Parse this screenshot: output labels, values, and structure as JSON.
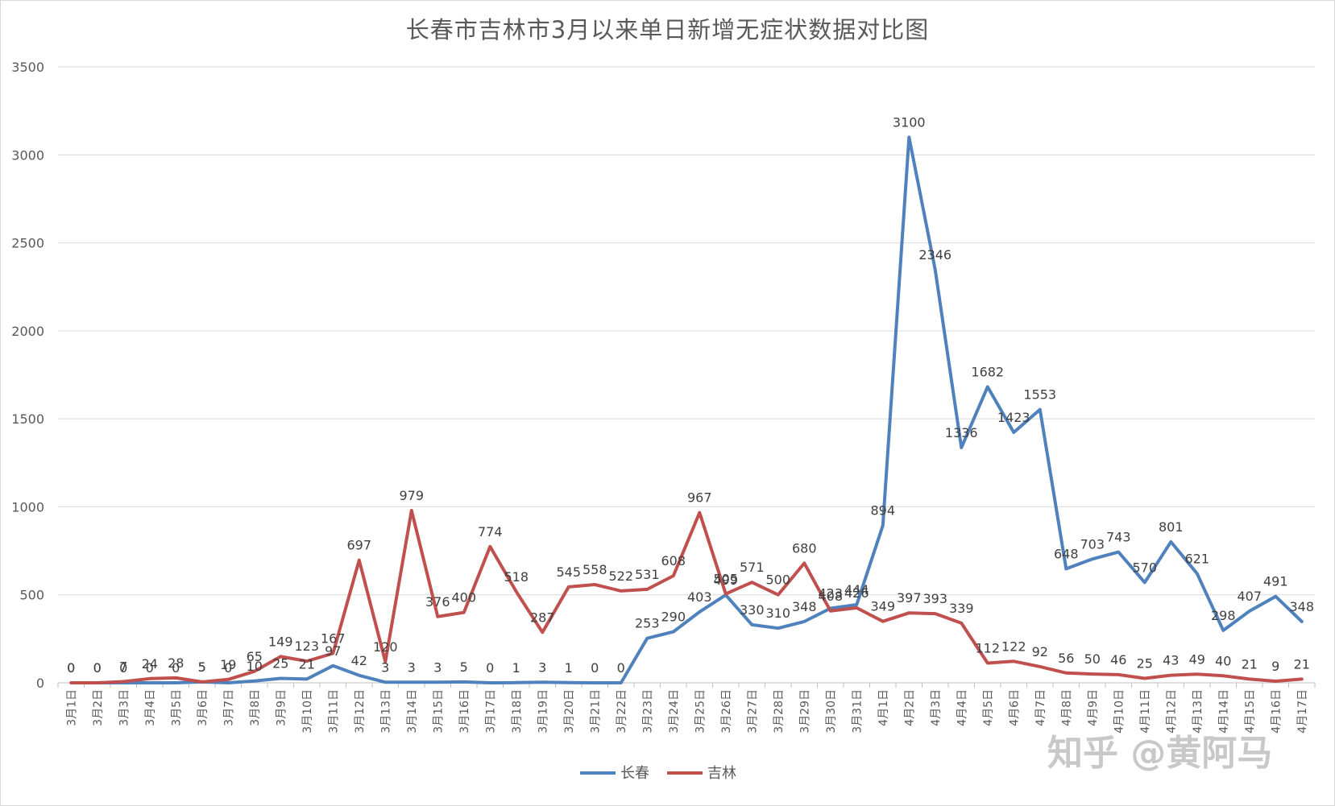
{
  "chart_data": {
    "type": "line",
    "title": "长春市吉林市3月以来单日新增无症状数据对比图",
    "xlabel": "",
    "ylabel": "",
    "ylim": [
      0,
      3500
    ],
    "yticks": [
      0,
      500,
      1000,
      1500,
      2000,
      2500,
      3000,
      3500
    ],
    "grid": "horizontal",
    "legend_position": "bottom",
    "categories": [
      "3月1日",
      "3月2日",
      "3月3日",
      "3月4日",
      "3月5日",
      "3月6日",
      "3月7日",
      "3月8日",
      "3月9日",
      "3月10日",
      "3月11日",
      "3月12日",
      "3月13日",
      "3月14日",
      "3月15日",
      "3月16日",
      "3月17日",
      "3月18日",
      "3月19日",
      "3月20日",
      "3月21日",
      "3月22日",
      "3月23日",
      "3月24日",
      "3月25日",
      "3月26日",
      "3月27日",
      "3月28日",
      "3月29日",
      "3月30日",
      "3月31日",
      "4月1日",
      "4月2日",
      "4月3日",
      "4月4日",
      "4月5日",
      "4月6日",
      "4月7日",
      "4月8日",
      "4月9日",
      "4月10日",
      "4月11日",
      "4月12日",
      "4月13日",
      "4月14日",
      "4月15日",
      "4月16日",
      "4月17日"
    ],
    "series": [
      {
        "name": "长春",
        "color": "#4f81bd",
        "values": [
          0,
          0,
          0,
          0,
          0,
          5,
          0,
          10,
          25,
          21,
          97,
          42,
          3,
          3,
          3,
          5,
          0,
          1,
          3,
          1,
          0,
          0,
          253,
          290,
          403,
          499,
          330,
          310,
          348,
          423,
          444,
          894,
          3100,
          2346,
          1336,
          1682,
          1423,
          1553,
          648,
          703,
          743,
          570,
          801,
          621,
          298,
          407,
          491,
          348
        ]
      },
      {
        "name": "吉林",
        "color": "#c0504d",
        "values": [
          0,
          0,
          7,
          24,
          28,
          5,
          19,
          65,
          149,
          123,
          167,
          697,
          120,
          979,
          376,
          400,
          774,
          518,
          287,
          545,
          558,
          522,
          531,
          608,
          967,
          505,
          571,
          500,
          680,
          408,
          426,
          349,
          397,
          393,
          339,
          112,
          122,
          92,
          56,
          50,
          46,
          25,
          43,
          49,
          40,
          21,
          9,
          21
        ]
      }
    ]
  },
  "watermark": {
    "text": "知乎 @黄阿马"
  }
}
